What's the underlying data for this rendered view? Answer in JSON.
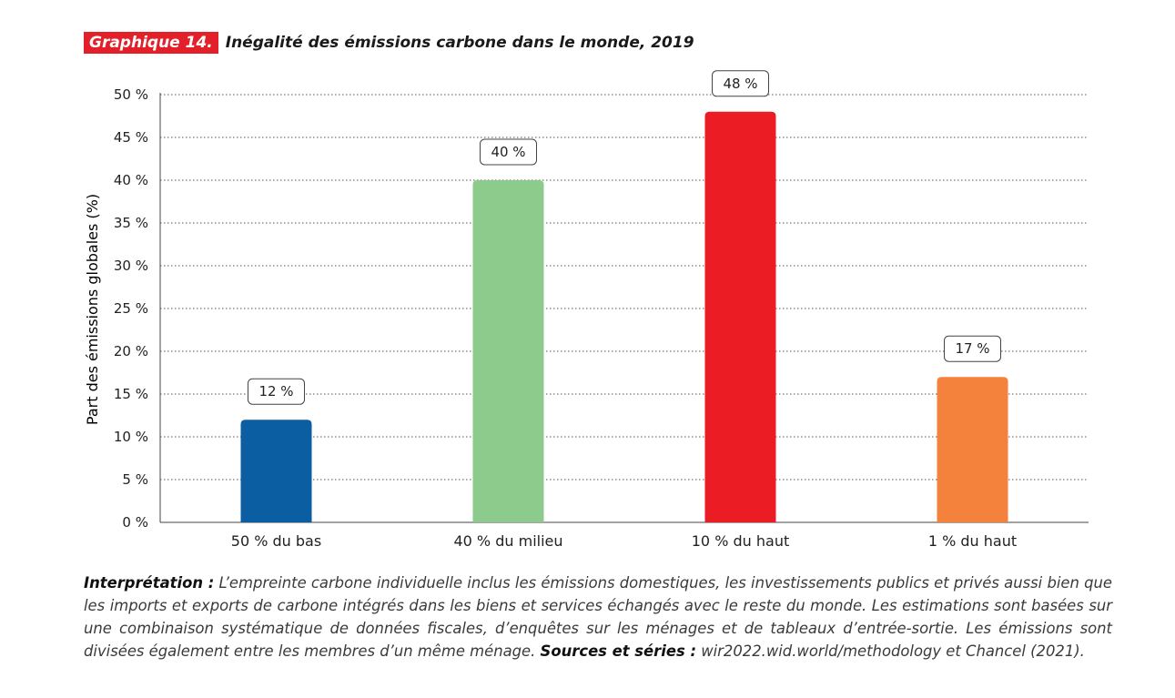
{
  "header": {
    "tag": "Graphique 14.",
    "title": "Inégalité des émissions carbone dans le monde, 2019"
  },
  "chart_data": {
    "type": "bar",
    "categories": [
      "50 % du bas",
      "40 % du milieu",
      "10 % du haut",
      "1 % du haut"
    ],
    "values": [
      12,
      40,
      48,
      17
    ],
    "value_labels": [
      "12 %",
      "40 %",
      "48 %",
      "17 %"
    ],
    "colors": [
      "#0b5ea1",
      "#8ccb8c",
      "#ec1c24",
      "#f4823c"
    ],
    "ylabel": "Part des émissions globales (%)",
    "ylim": [
      0,
      50
    ],
    "yticks": [
      0,
      5,
      10,
      15,
      20,
      25,
      30,
      35,
      40,
      45,
      50
    ],
    "ytick_labels": [
      "0 %",
      "5 %",
      "10 %",
      "15 %",
      "20 %",
      "25 %",
      "30 %",
      "35 %",
      "40 %",
      "45 %",
      "50 %"
    ],
    "grid": true
  },
  "note": {
    "interp_label": "Interprétation :",
    "interp_text": " L’empreinte carbone individuelle inclus les émissions domestiques, les investissements publics et privés aussi bien que les imports et exports de carbone intégrés dans les biens et services échangés avec le reste du monde. Les estimations sont basées sur une combinaison systématique de données fiscales, d’enquêtes sur les ménages et de tableaux d’entrée-sortie. Les émissions sont divisées également entre les membres d’un même ménage. ",
    "sources_label": "Sources et séries :",
    "sources_text": " wir2022.wid.world/methodology et Chancel (2021)."
  }
}
